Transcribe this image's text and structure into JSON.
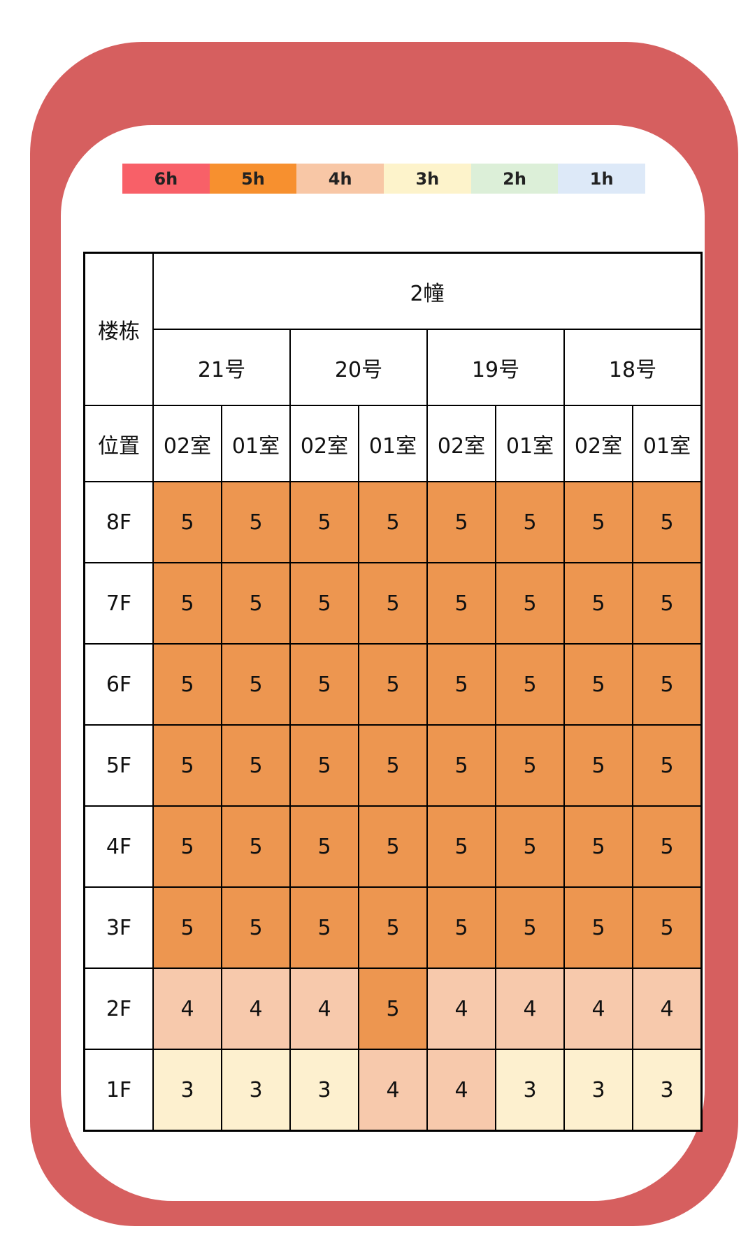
{
  "legend": [
    {
      "label": "6h",
      "color": "#f86068"
    },
    {
      "label": "5h",
      "color": "#f7902f"
    },
    {
      "label": "4h",
      "color": "#f8c7a6"
    },
    {
      "label": "3h",
      "color": "#fdf3cb"
    },
    {
      "label": "2h",
      "color": "#dcefd8"
    },
    {
      "label": "1h",
      "color": "#dde9f8"
    }
  ],
  "cell_colors": {
    "5": "#ed9650",
    "4": "#f7c9ac",
    "3": "#fdf0cf"
  },
  "chart_data": {
    "type": "heatmap",
    "corner_label": "楼栋",
    "position_label": "位置",
    "building": "2幢",
    "units": [
      "21号",
      "20号",
      "19号",
      "18号"
    ],
    "rooms": [
      "02室",
      "01室",
      "02室",
      "01室",
      "02室",
      "01室",
      "02室",
      "01室"
    ],
    "floors": [
      "8F",
      "7F",
      "6F",
      "5F",
      "4F",
      "3F",
      "2F",
      "1F"
    ],
    "values": [
      [
        5,
        5,
        5,
        5,
        5,
        5,
        5,
        5
      ],
      [
        5,
        5,
        5,
        5,
        5,
        5,
        5,
        5
      ],
      [
        5,
        5,
        5,
        5,
        5,
        5,
        5,
        5
      ],
      [
        5,
        5,
        5,
        5,
        5,
        5,
        5,
        5
      ],
      [
        5,
        5,
        5,
        5,
        5,
        5,
        5,
        5
      ],
      [
        5,
        5,
        5,
        5,
        5,
        5,
        5,
        5
      ],
      [
        4,
        4,
        4,
        5,
        4,
        4,
        4,
        4
      ],
      [
        3,
        3,
        3,
        4,
        4,
        3,
        3,
        3
      ]
    ]
  }
}
